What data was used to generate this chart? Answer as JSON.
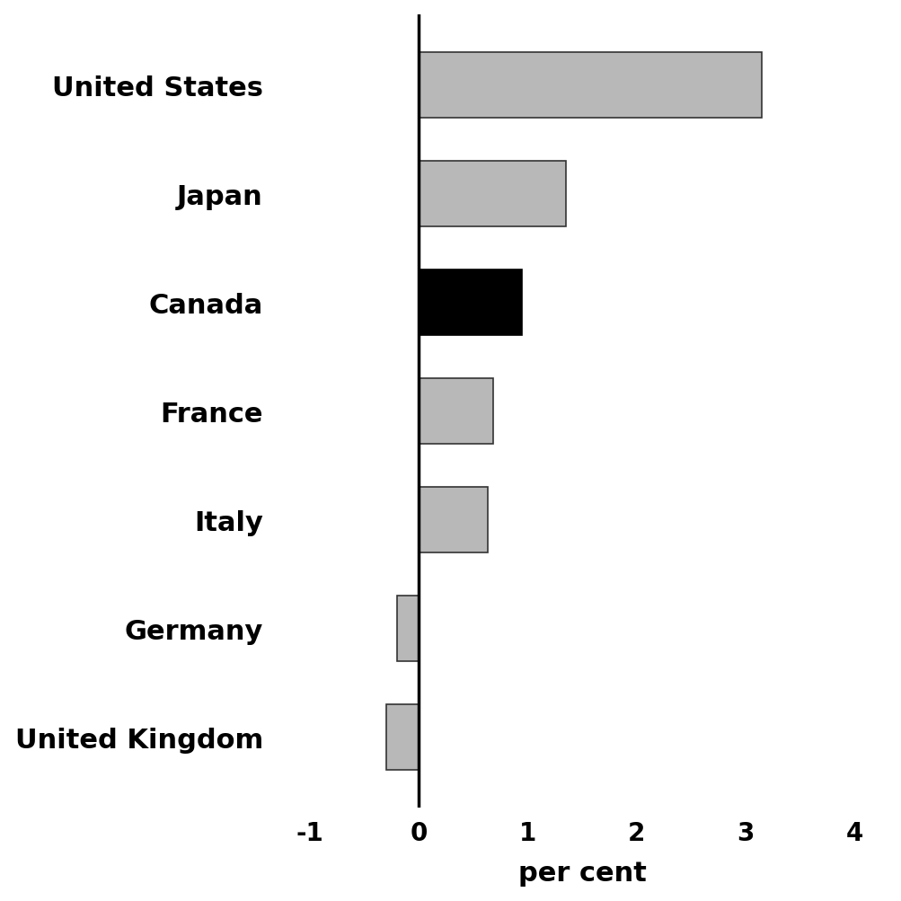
{
  "categories": [
    "United States",
    "Japan",
    "Canada",
    "France",
    "Italy",
    "Germany",
    "United Kingdom"
  ],
  "values": [
    3.15,
    1.35,
    0.95,
    0.68,
    0.63,
    -0.2,
    -0.3
  ],
  "bar_colors": [
    "#b8b8b8",
    "#b8b8b8",
    "#000000",
    "#b8b8b8",
    "#b8b8b8",
    "#b8b8b8",
    "#b8b8b8"
  ],
  "bar_edge_colors": [
    "#333333",
    "#333333",
    "#000000",
    "#333333",
    "#333333",
    "#333333",
    "#333333"
  ],
  "xlabel": "per cent",
  "xlim": [
    -1.3,
    4.3
  ],
  "xticks": [
    -1,
    0,
    1,
    2,
    3,
    4
  ],
  "xtick_labels": [
    "-1",
    "0",
    "1",
    "2",
    "3",
    "4"
  ],
  "background_color": "#ffffff",
  "bar_height": 0.6,
  "label_fontsize": 22,
  "tick_fontsize": 20,
  "xlabel_fontsize": 22,
  "font_weight": "bold"
}
